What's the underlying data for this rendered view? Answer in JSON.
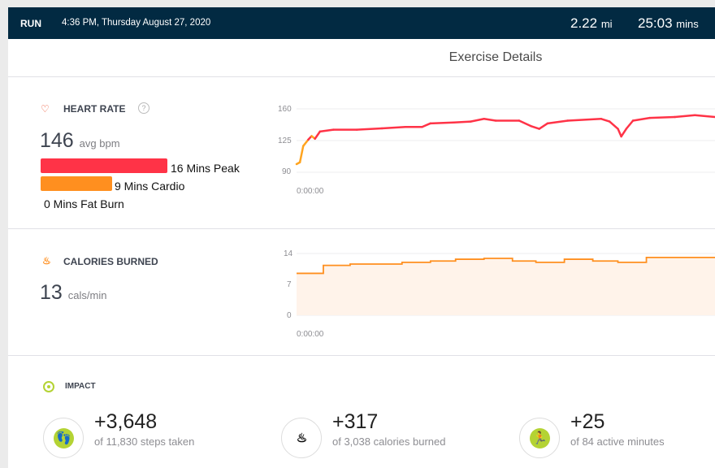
{
  "header": {
    "activity": "RUN",
    "datetime": "4:36 PM, Thursday August 27, 2020",
    "distance": "2.22",
    "distance_unit": "mi",
    "duration": "25:03",
    "duration_unit": "mins"
  },
  "title": "Exercise Details",
  "heart_rate": {
    "label": "HEART RATE",
    "help": "?",
    "avg": "146",
    "avg_unit": "avg bpm",
    "zones": [
      {
        "label": "16 Mins Peak",
        "minutes": 16,
        "color": "#ff3347"
      },
      {
        "label": "9 Mins Cardio",
        "minutes": 9,
        "color": "#ff8f1f"
      },
      {
        "label": "0 Mins Fat Burn",
        "minutes": 0,
        "color": "#ffc21f"
      }
    ]
  },
  "calories": {
    "label": "CALORIES BURNED",
    "value": "13",
    "unit": "cals/min"
  },
  "chart_data": [
    {
      "type": "line",
      "title": "Heart Rate",
      "yticks": [
        "160",
        "125",
        "90"
      ],
      "ylim": [
        90,
        160
      ],
      "xlabel": "0:00:00",
      "x": [
        0,
        0.2,
        0.4,
        0.7,
        0.9,
        1.1,
        1.4,
        2.2,
        3.6,
        5.1,
        6.5,
        7.5,
        8.0,
        9.4,
        10.4,
        11.2,
        11.9,
        13.3,
        14.0,
        14.5,
        15.0,
        16.2,
        18.2,
        18.7,
        19.2,
        19.4,
        19.7,
        20.1,
        21.1,
        22.6,
        23.8,
        25
      ],
      "y": [
        99,
        101,
        119,
        126,
        130,
        127,
        135,
        137,
        137,
        138.5,
        140,
        140,
        144,
        145,
        146,
        149,
        147,
        147,
        141,
        138,
        144,
        147,
        149,
        146,
        138,
        129.5,
        138,
        147,
        150,
        151,
        153,
        151
      ],
      "colors": {
        "cardio": "#ffa41f",
        "peak": "#ff3347"
      }
    },
    {
      "type": "area",
      "title": "Calories Burned",
      "yticks": [
        "14",
        "7",
        "0"
      ],
      "ylim": [
        0,
        14
      ],
      "xlabel": "0:00:00",
      "x": [
        0,
        1.6,
        3.2,
        6.3,
        8.0,
        9.5,
        11.2,
        12.9,
        14.3,
        16.0,
        17.7,
        19.2,
        20.9,
        25
      ],
      "y": [
        9.5,
        11.3,
        11.6,
        12,
        12.3,
        12.7,
        12.9,
        12.3,
        12,
        12.7,
        12.3,
        12,
        13.1,
        13.1
      ],
      "color": "#ff8f1f"
    }
  ],
  "impact": {
    "label": "IMPACT",
    "items": [
      {
        "icon": "footsteps-icon",
        "value": "+3,648",
        "sub": "of 11,830 steps taken"
      },
      {
        "icon": "flame-icon",
        "value": "+317",
        "sub": "of 3,038 calories burned"
      },
      {
        "icon": "runner-icon",
        "value": "+25",
        "sub": "of 84 active minutes"
      }
    ]
  }
}
